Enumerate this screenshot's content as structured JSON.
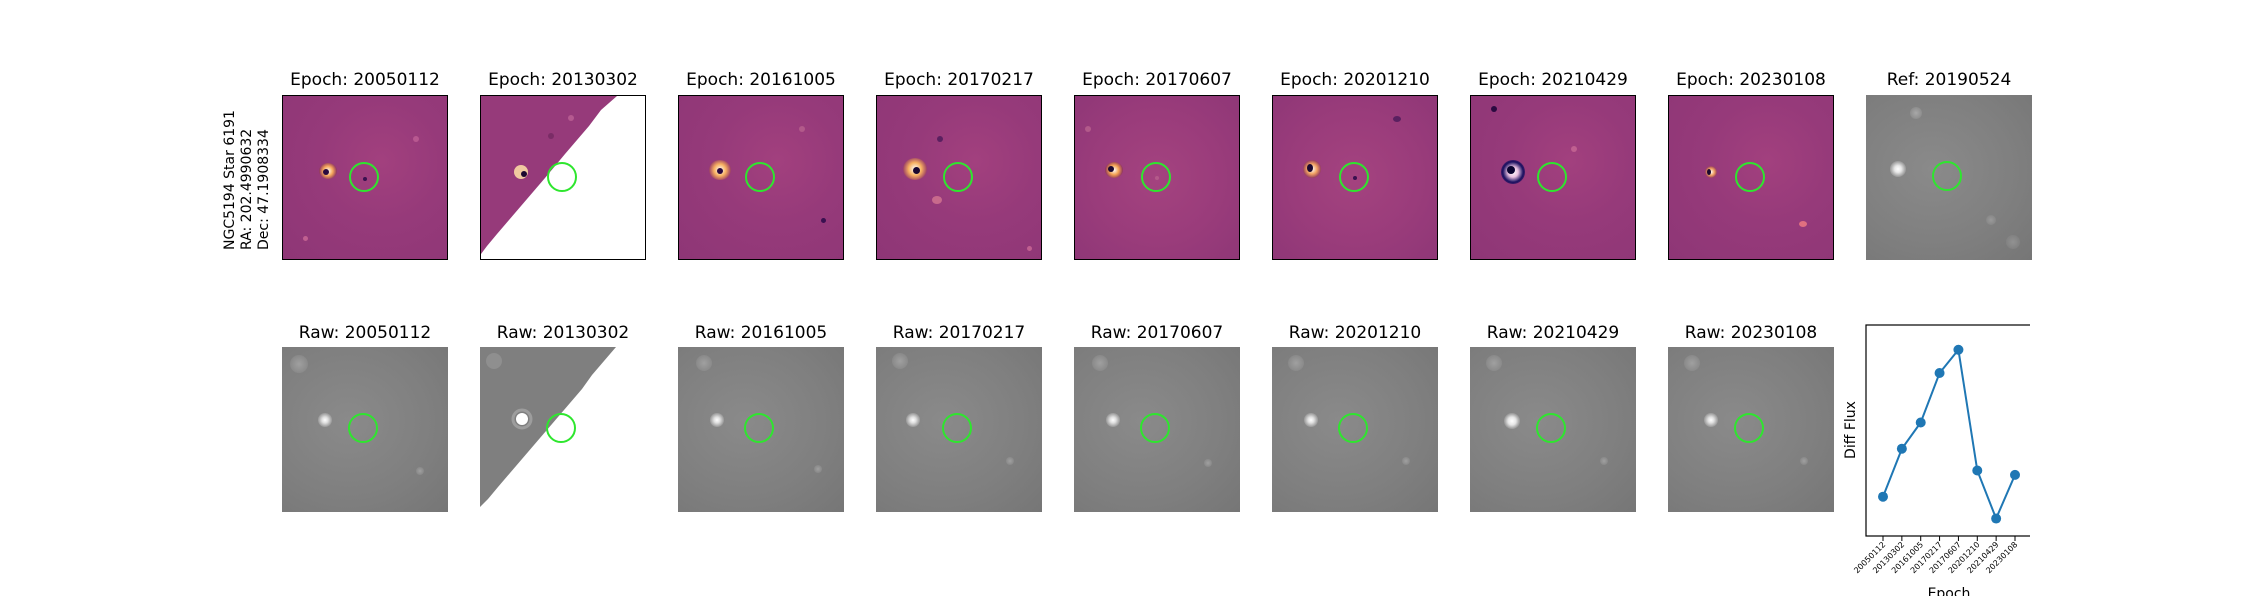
{
  "side_label": {
    "line1": "NGC5194 Star 6191",
    "line2": "RA: 202.4990632",
    "line3": "Dec: 47.1908334"
  },
  "top_row": [
    {
      "title": "Epoch: 20050112"
    },
    {
      "title": "Epoch: 20130302"
    },
    {
      "title": "Epoch: 20161005"
    },
    {
      "title": "Epoch: 20170217"
    },
    {
      "title": "Epoch: 20170607"
    },
    {
      "title": "Epoch: 20201210"
    },
    {
      "title": "Epoch: 20210429"
    },
    {
      "title": "Epoch: 20230108"
    },
    {
      "title": "Ref: 20190524"
    }
  ],
  "bottom_row": [
    {
      "title": "Raw: 20050112"
    },
    {
      "title": "Raw: 20130302"
    },
    {
      "title": "Raw: 20161005"
    },
    {
      "title": "Raw: 20170217"
    },
    {
      "title": "Raw: 20170607"
    },
    {
      "title": "Raw: 20201210"
    },
    {
      "title": "Raw: 20210429"
    },
    {
      "title": "Raw: 20230108"
    }
  ],
  "colors": {
    "diff_base": "#963a7a",
    "raw_base": "#7f7f7f",
    "aperture": "#2ee62e",
    "line": "#1f77b4"
  },
  "chart_data": {
    "type": "line",
    "xlabel": "Epoch",
    "ylabel": "Diff Flux",
    "categories": [
      "20050112",
      "20130302",
      "20161005",
      "20170217",
      "20170607",
      "20201210",
      "20210429",
      "20230108"
    ],
    "values": [
      0.07,
      0.4,
      0.58,
      0.92,
      1.08,
      0.25,
      -0.08,
      0.22
    ],
    "ylim": [
      -0.2,
      1.25
    ],
    "y_ticks_shown": false
  }
}
